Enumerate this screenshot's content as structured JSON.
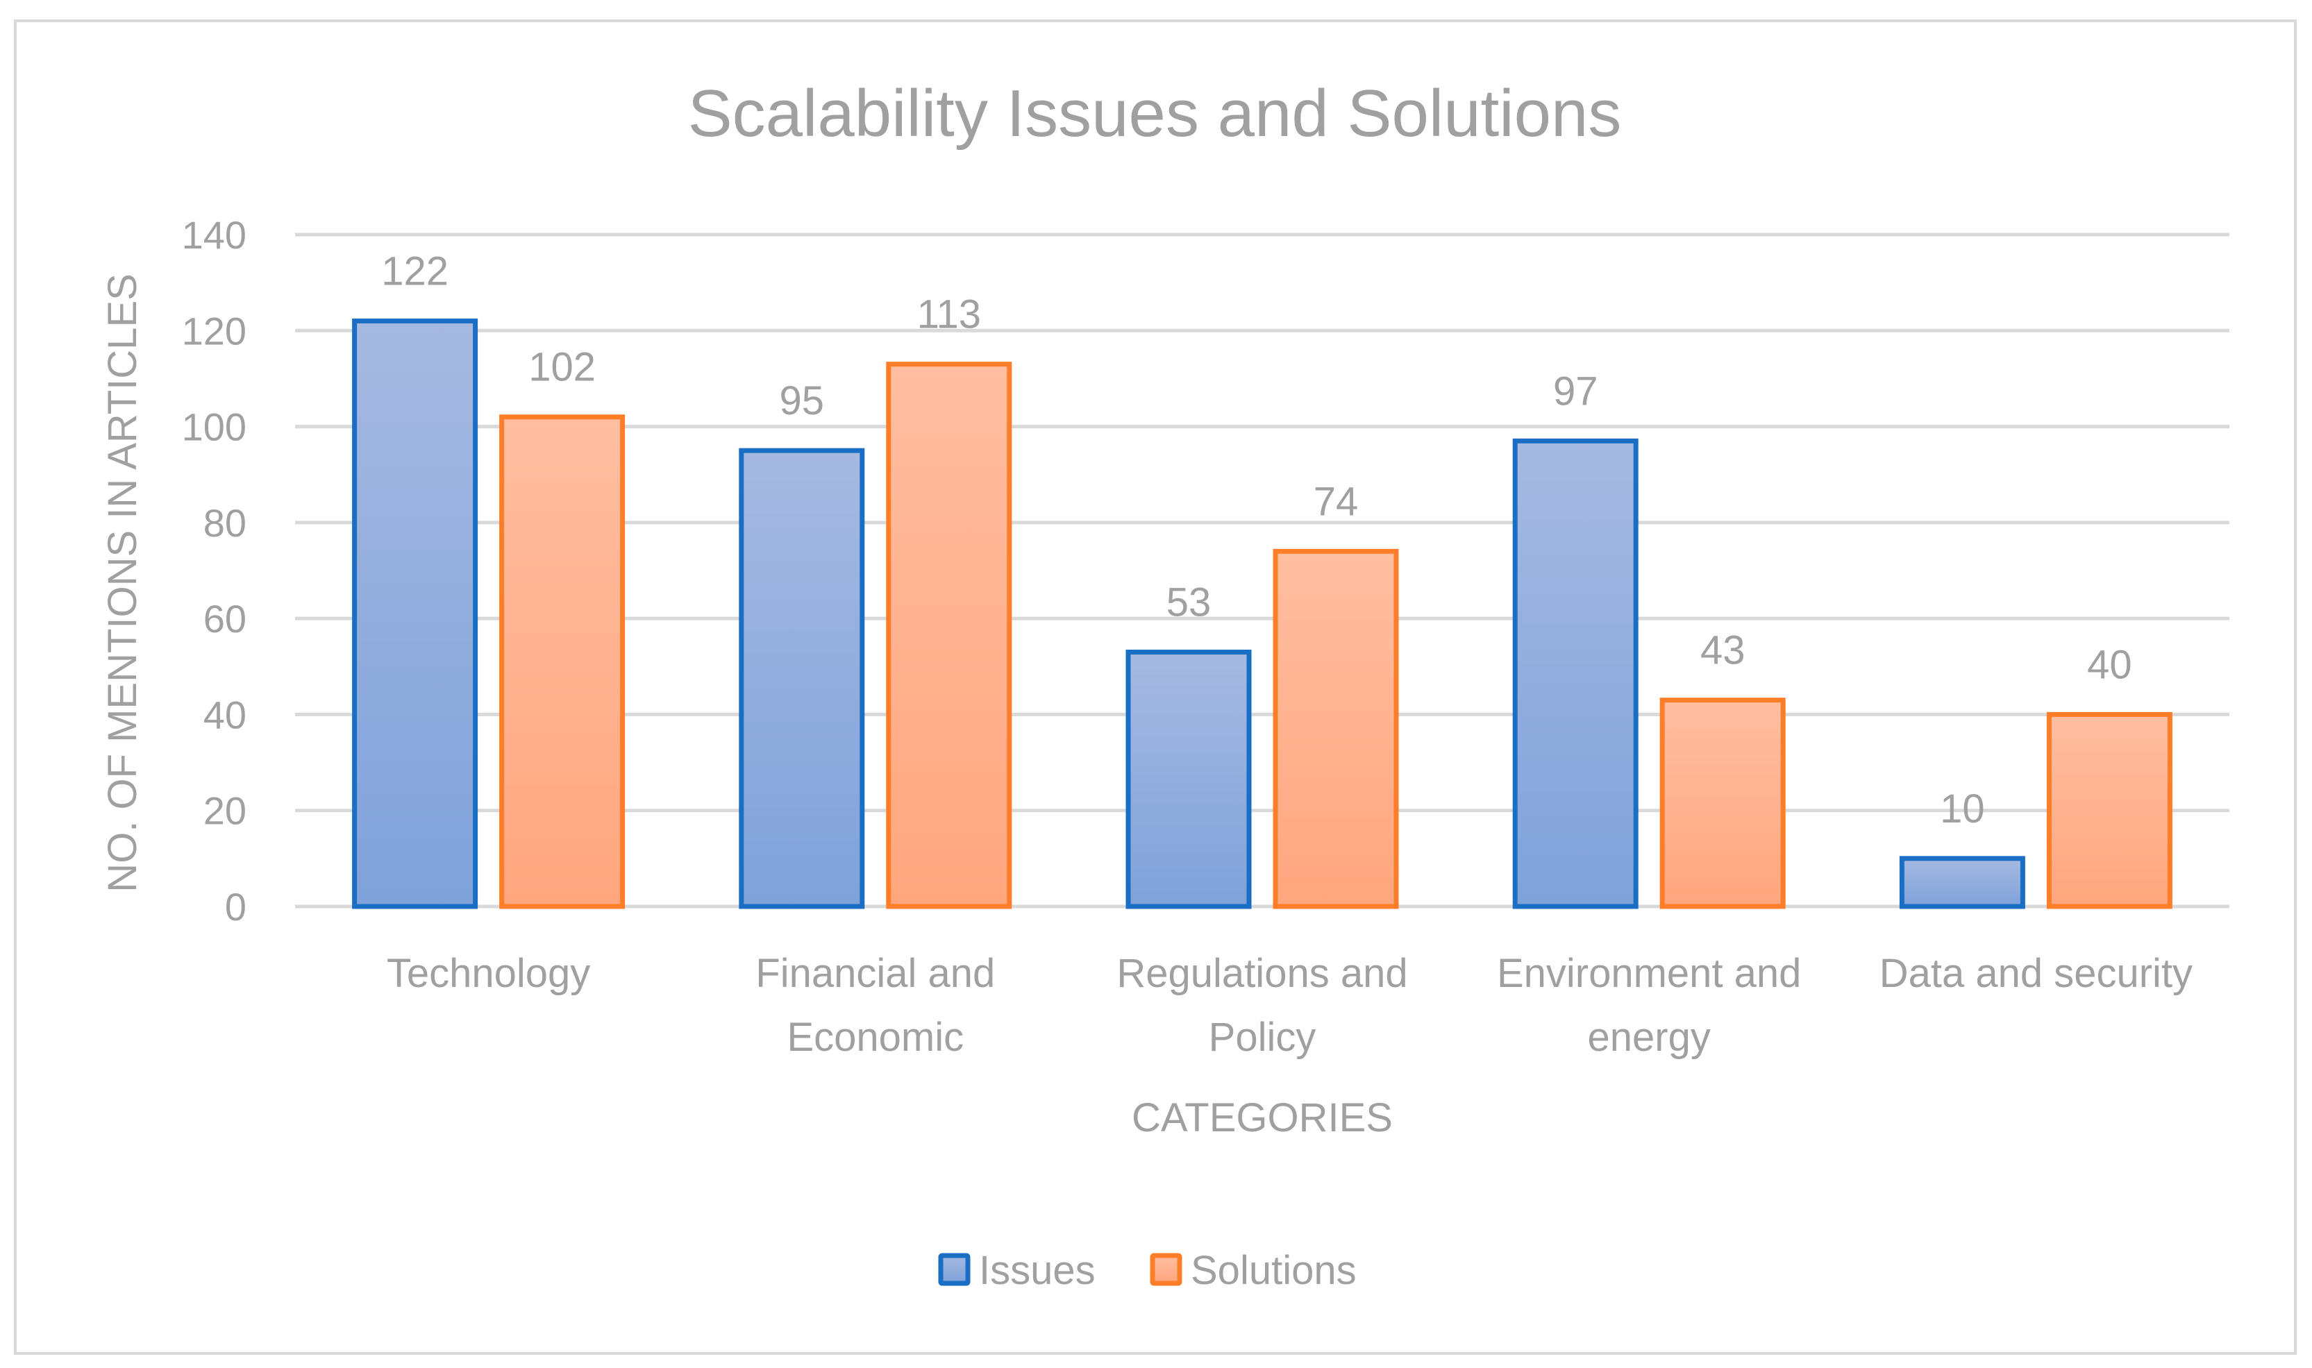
{
  "chart_data": {
    "type": "bar",
    "title": "Scalability Issues and Solutions",
    "xlabel": "CATEGORIES",
    "ylabel": "NO. OF MENTIONS IN ARTICLES",
    "categories": [
      [
        "Technology"
      ],
      [
        "Financial and",
        "Economic"
      ],
      [
        "Regulations and",
        "Policy"
      ],
      [
        "Environment and",
        "energy"
      ],
      [
        "Data and security"
      ]
    ],
    "series": [
      {
        "name": "Issues",
        "values": [
          122,
          95,
          53,
          97,
          10
        ],
        "fill": "#9bb1de",
        "stroke": "#1a6fc4"
      },
      {
        "name": "Solutions",
        "values": [
          102,
          113,
          74,
          43,
          40
        ],
        "fill": "#ffb999",
        "stroke": "#fd7d28"
      }
    ],
    "ylim": [
      0,
      140
    ],
    "yticks": [
      0,
      20,
      40,
      60,
      80,
      100,
      120,
      140
    ],
    "grid": true,
    "data_labels": true,
    "legend": "bottom"
  }
}
